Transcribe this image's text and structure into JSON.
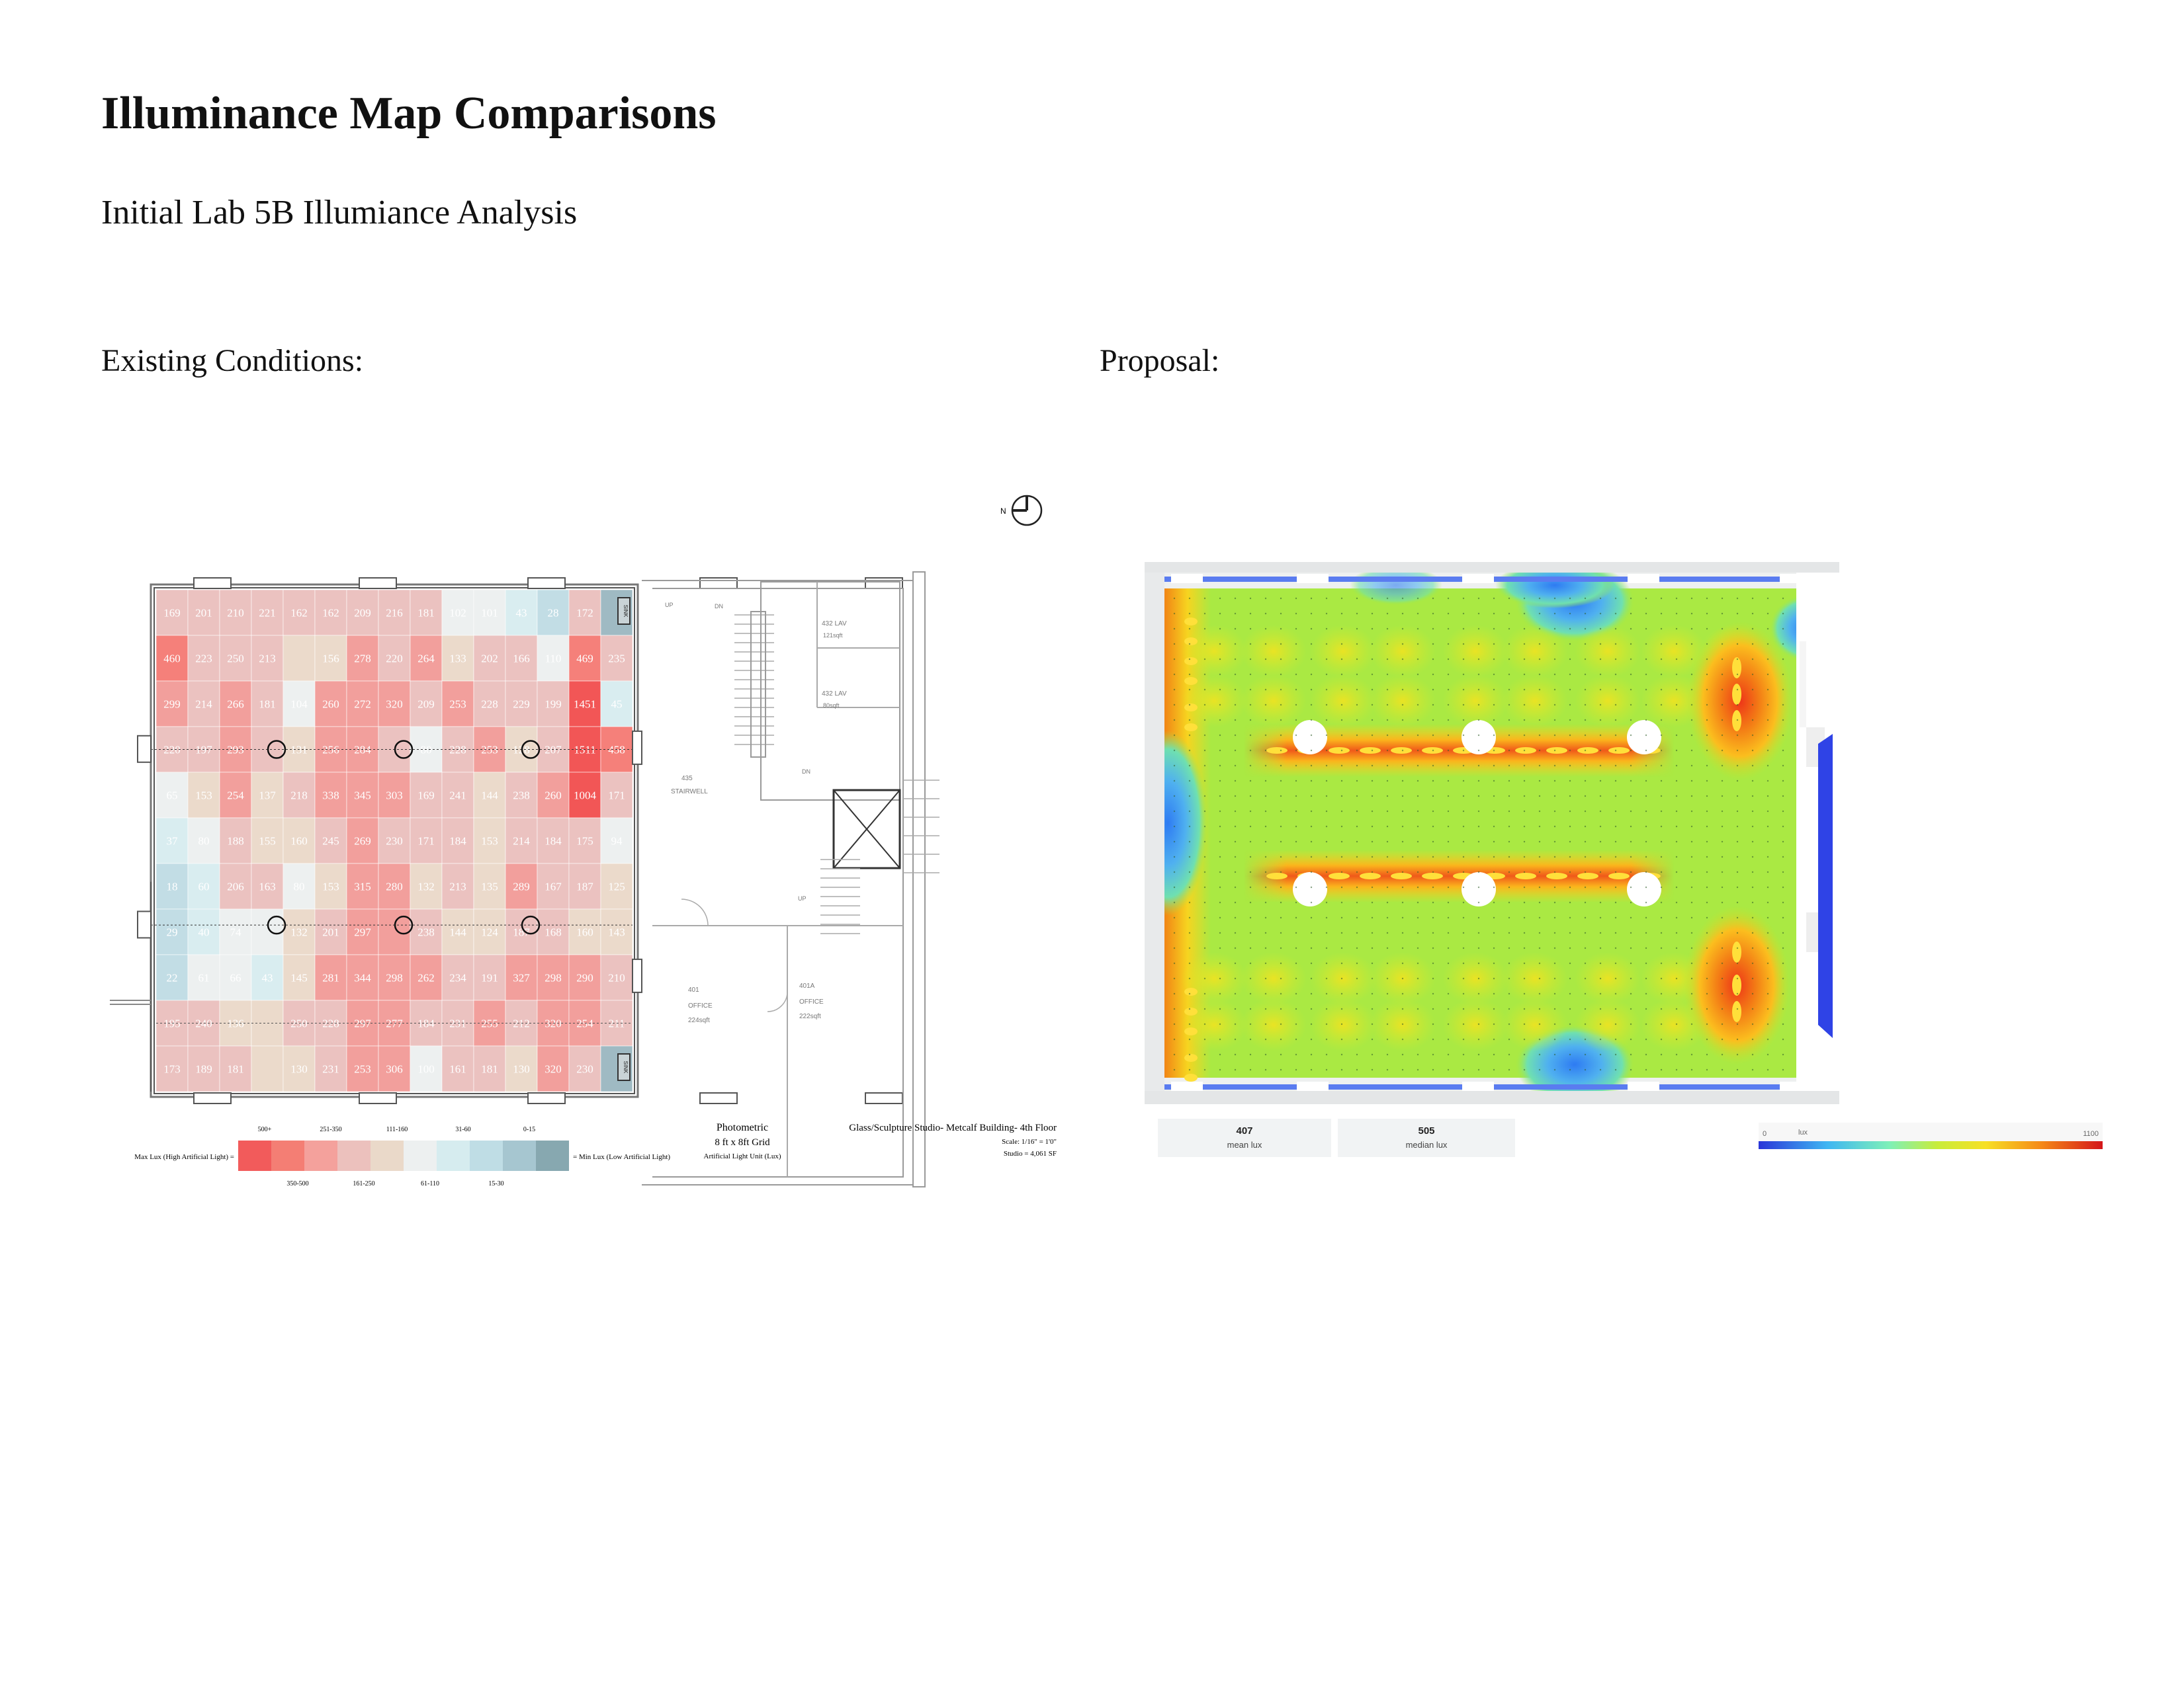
{
  "title": "Illuminance Map Comparisons",
  "subtitle": "Initial Lab 5B Illumiance  Analysis",
  "left_heading": "Existing Conditions:",
  "right_heading": "Proposal:",
  "existing": {
    "grid": [
      [
        "169",
        "201",
        "210",
        "221",
        "162",
        "162",
        "209",
        "216",
        "181",
        "102",
        "101",
        "43",
        "28",
        "172",
        "SINK"
      ],
      [
        "460",
        "223",
        "250",
        "213",
        "",
        "156",
        "278",
        "220",
        "264",
        "133",
        "202",
        "166",
        "110",
        "469",
        "235"
      ],
      [
        "299",
        "214",
        "266",
        "181",
        "104",
        "260",
        "272",
        "320",
        "209",
        "253",
        "228",
        "229",
        "199",
        "1451",
        "45"
      ],
      [
        "220",
        "197",
        "293",
        "",
        "131",
        "256",
        "284",
        "",
        "80",
        "228",
        "253",
        "128",
        "207",
        "1511",
        "458"
      ],
      [
        "65",
        "153",
        "254",
        "137",
        "218",
        "338",
        "345",
        "303",
        "169",
        "241",
        "144",
        "238",
        "260",
        "1004",
        "171"
      ],
      [
        "37",
        "80",
        "188",
        "155",
        "160",
        "245",
        "269",
        "230",
        "171",
        "184",
        "153",
        "214",
        "184",
        "175",
        "94"
      ],
      [
        "18",
        "60",
        "206",
        "163",
        "80",
        "153",
        "315",
        "280",
        "132",
        "213",
        "135",
        "289",
        "167",
        "187",
        "125"
      ],
      [
        "29",
        "40",
        "74",
        "",
        "132",
        "201",
        "297",
        "",
        "238",
        "144",
        "124",
        "187",
        "168",
        "160",
        "143"
      ],
      [
        "22",
        "61",
        "66",
        "43",
        "145",
        "281",
        "344",
        "298",
        "262",
        "234",
        "191",
        "327",
        "298",
        "290",
        "210"
      ],
      [
        "195",
        "240",
        "136",
        "",
        "250",
        "228",
        "297",
        "277",
        "184",
        "231",
        "255",
        "212",
        "320",
        "254",
        "211"
      ],
      [
        "173",
        "189",
        "181",
        "",
        "130",
        "231",
        "253",
        "306",
        "100",
        "161",
        "181",
        "130",
        "320",
        "230",
        "SINK"
      ]
    ],
    "legend": {
      "left_label": "Max Lux (High Artificial Light) =",
      "right_label": "= Min Lux (Low Artificial Light)",
      "top_labels": [
        "500+",
        "251-350",
        "111-160",
        "31-60",
        "0-15"
      ],
      "bottom_labels": [
        "350-500",
        "161-250",
        "61-110",
        "15-30"
      ],
      "colors": [
        "#f25b5b",
        "#f47e74",
        "#f4a19c",
        "#ecc1bd",
        "#ead9c9",
        "#edf0f0",
        "#d6ecef",
        "#bfdde5",
        "#a6c6d0",
        "#87a8b0"
      ]
    },
    "info": {
      "photometric": "Photometric",
      "grid": "8 ft x 8ft Grid",
      "unit": "Artificial Light Unit (Lux)",
      "project": "Glass/Sculpture Studio- Metcalf Building- 4th Floor",
      "scale": "Scale: 1/16\" = 1'0\"",
      "area": "Studio = 4,061 SF"
    },
    "rooms": {
      "lav_432": "432 LAV",
      "lav_432_area": "121sqft",
      "lav_432b": "432 LAV",
      "lav_432b_area": "80sqft",
      "stair_no": "435",
      "stair": "STAIRWELL",
      "office_401": "401",
      "office_401_label": "OFFICE",
      "office_401_area": "224sqft",
      "office_401a": "401A",
      "office_401a_label": "OFFICE",
      "office_401a_area": "222sqft",
      "up1": "UP",
      "dn1": "DN",
      "dn2": "DN",
      "up2": "UP"
    },
    "north": "N",
    "sink": "SINK"
  },
  "proposal": {
    "mean_value": "407",
    "mean_label": "mean lux",
    "median_value": "505",
    "median_label": "median lux",
    "scale_min": "0",
    "scale_unit": "lux",
    "scale_max": "1100"
  }
}
